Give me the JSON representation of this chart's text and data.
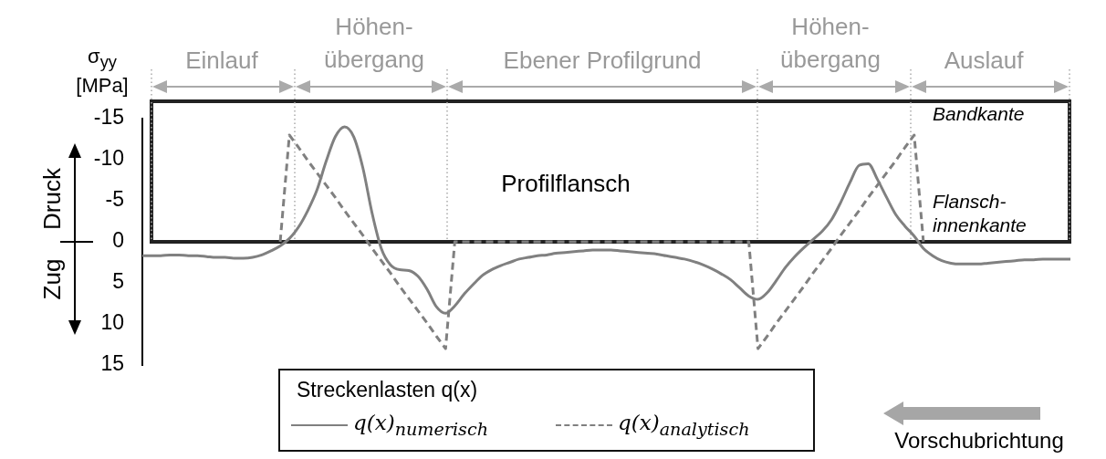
{
  "chart_data": {
    "type": "line",
    "ylabel": "σ$_{yy}$\n[MPa]",
    "legend_title": "Streckenlasten q(x)",
    "legend": "bottom",
    "marker": "none",
    "tick_labels": "y",
    "grid": false,
    "ylim": [
      15,
      -15
    ],
    "yticks": [
      -15,
      -10,
      -5,
      0,
      5,
      10,
      15
    ],
    "categories": [
      null,
      null,
      null,
      null,
      null,
      null,
      null,
      null,
      null,
      null,
      null,
      null,
      null,
      null,
      null,
      null,
      null,
      null,
      null,
      null,
      null,
      null,
      null,
      null,
      null,
      null,
      null,
      null,
      null,
      null,
      null,
      null,
      null,
      null,
      null,
      null,
      null,
      null,
      null,
      null,
      null,
      null,
      null,
      null,
      null,
      null,
      null,
      null,
      null,
      null,
      null,
      null,
      null,
      null,
      null,
      null,
      null,
      null,
      null,
      null,
      null,
      null,
      null,
      null,
      null,
      null,
      null,
      null,
      null,
      null,
      null,
      null,
      null,
      null,
      null,
      null,
      null,
      null,
      null,
      null,
      null,
      null,
      null,
      null,
      null,
      null,
      null,
      null,
      null,
      null,
      null,
      null,
      null,
      null,
      null,
      null,
      null,
      null,
      null,
      null,
      null,
      null
    ],
    "series": [
      {
        "name": "q(x)$_{numerisch}$",
        "color": "#808080",
        "line_style": "solid",
        "values": [
          1.7,
          1.7,
          1.7,
          1.6,
          1.6,
          1.7,
          1.7,
          1.8,
          1.9,
          1.9,
          2.0,
          2.0,
          1.9,
          1.6,
          1.1,
          0.5,
          -0.4,
          -1.8,
          -3.8,
          -6.3,
          -9.8,
          -12.8,
          -14,
          -12.8,
          -9,
          -3.5,
          0.8,
          2.8,
          3.4,
          3.5,
          4.2,
          5.8,
          7.9,
          8.7,
          7.8,
          6.4,
          5.2,
          4.1,
          3.4,
          2.9,
          2.5,
          2.1,
          1.9,
          1.7,
          1.6,
          1.4,
          1.3,
          1.2,
          1.1,
          1.0,
          1.0,
          1.0,
          1.1,
          1.2,
          1.3,
          1.4,
          1.5,
          1.7,
          1.9,
          2.1,
          2.4,
          2.8,
          3.3,
          3.9,
          4.6,
          5.6,
          6.6,
          7.0,
          6.2,
          4.7,
          3.1,
          1.8,
          0.7,
          -0.3,
          -1.3,
          -2.7,
          -4.8,
          -7.2,
          -9.3,
          -9.5,
          -7.6,
          -5.4,
          -3.3,
          -1.9,
          -0.7,
          0.8,
          1.7,
          2.3,
          2.6,
          2.7,
          2.7,
          2.7,
          2.6,
          2.5,
          2.4,
          2.3,
          2.2,
          2.2,
          2.1,
          2.1,
          2.1,
          2.1
        ]
      },
      {
        "name": "q(x)$_{analytisch}$",
        "color": "#808080",
        "line_style": "dashed",
        "values": [
          null,
          null,
          null,
          null,
          null,
          null,
          null,
          null,
          null,
          null,
          null,
          null,
          null,
          null,
          null,
          0,
          -13,
          -11.5,
          -9.9,
          -8.4,
          -6.9,
          -5.4,
          -3.8,
          -2.3,
          -0.8,
          0.8,
          2.3,
          3.8,
          5.4,
          6.9,
          8.4,
          9.9,
          11.5,
          13,
          0,
          0,
          0,
          0,
          0,
          0,
          0,
          0,
          0,
          0,
          0,
          0,
          0,
          0,
          0,
          0,
          0,
          0,
          0,
          0,
          0,
          0,
          0,
          0,
          0,
          0,
          0,
          0,
          0,
          0,
          0,
          0,
          0,
          13,
          11.5,
          9.9,
          8.4,
          6.9,
          5.4,
          3.8,
          2.3,
          0.8,
          -0.8,
          -2.3,
          -3.8,
          -5.4,
          -6.9,
          -8.4,
          -9.9,
          -11.5,
          -13,
          0,
          null,
          null,
          null,
          null,
          null,
          null,
          null,
          null,
          null,
          null,
          null,
          null,
          null,
          null,
          null,
          null
        ]
      }
    ],
    "annotations": [
      "Einlauf",
      "Höhen-\nübergang",
      "Ebener Profilgrund",
      "Höhen-\nübergang",
      "Auslauf",
      "Profilflansch",
      "Bandkante",
      "Flansch-\ninnenkante",
      "Druck",
      "Zug",
      "Vorschubrichtung"
    ]
  }
}
